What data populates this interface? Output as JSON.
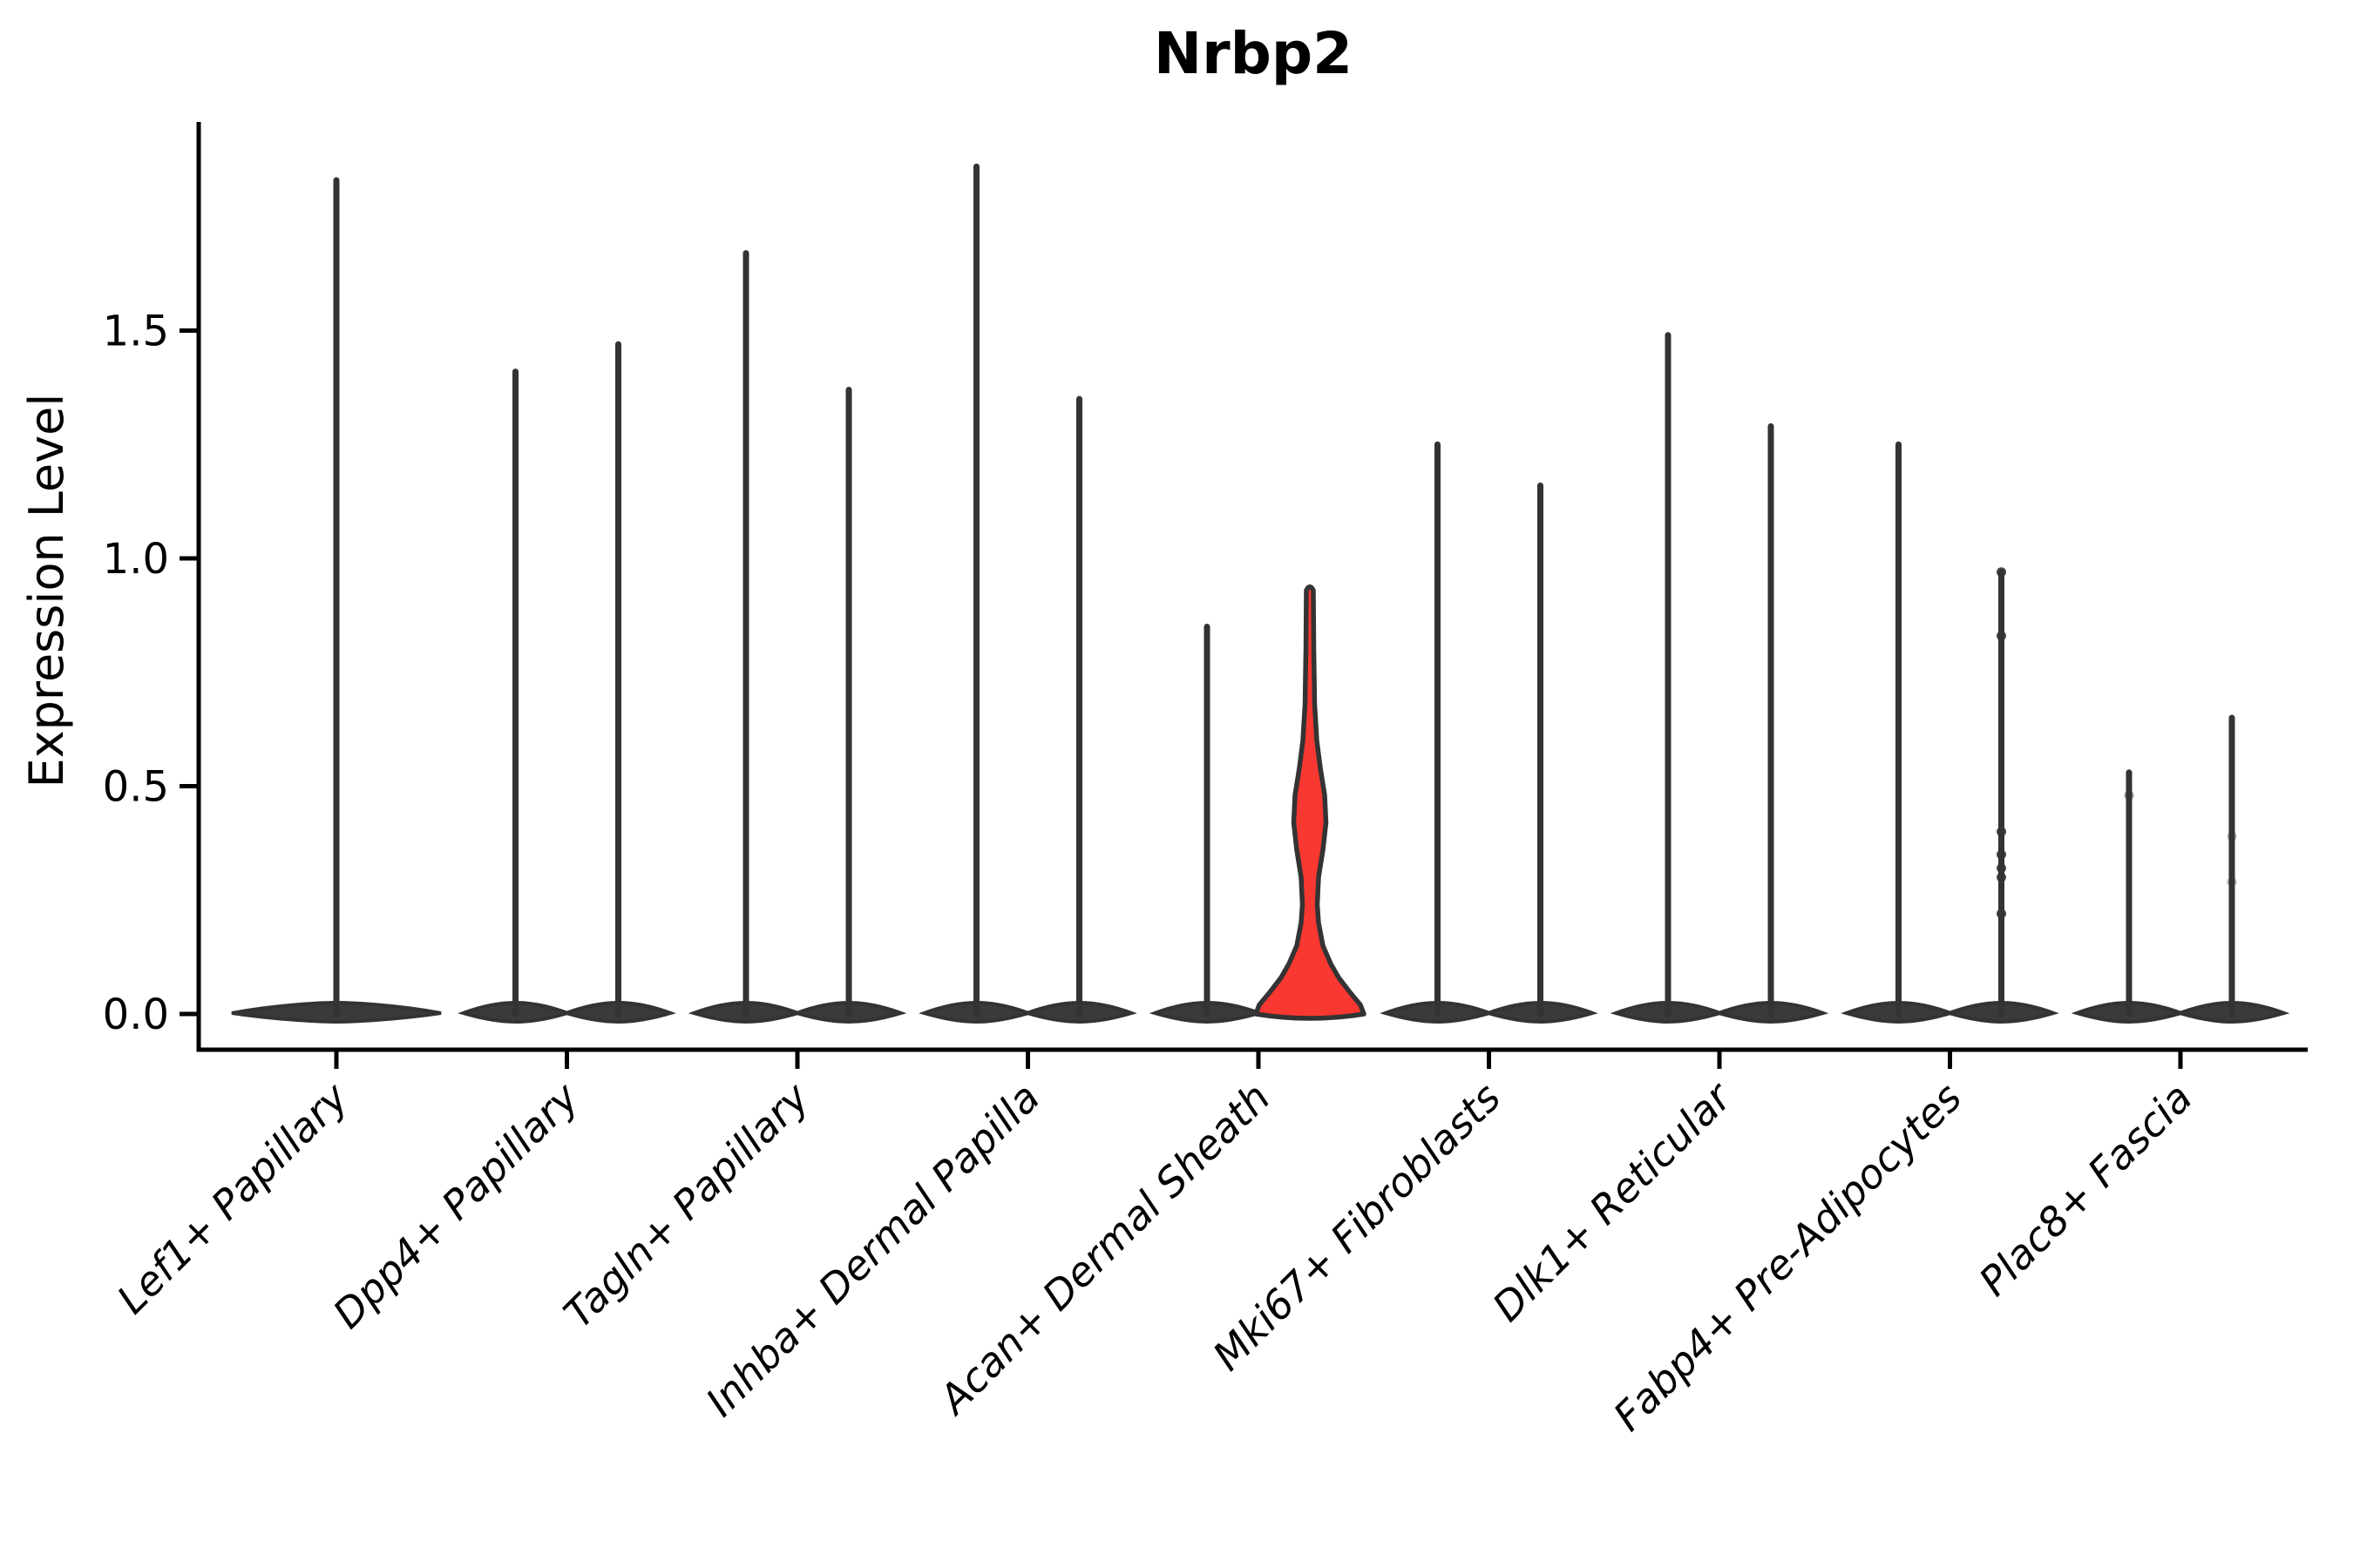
{
  "figure": {
    "title": "Nrbp2",
    "background": "#ffffff"
  },
  "chart_data": {
    "type": "violin",
    "title": "Nrbp2",
    "xlabel": "",
    "ylabel": "Expression Level",
    "yticks": [
      0.0,
      0.5,
      1.0,
      1.5
    ],
    "ytick_labels": [
      "0.0",
      "0.5",
      "1.0",
      "1.5"
    ],
    "ylim": [
      -0.07,
      1.96
    ],
    "grid": false,
    "legend": "none",
    "x_label_rotation_deg": 45,
    "x_label_style": "italic",
    "categories": [
      "Lef1+ Papillary",
      "Dpp4+ Papillary",
      "Tagln+ Papillary",
      "Inhba+ Dermal Papilla",
      "Acan+ Dermal Sheath",
      "Mki67+ Fibroblasts",
      "Dlk1+ Reticular",
      "Fabp4+ Pre-Adipocytes",
      "Plac8+ Fascia"
    ],
    "highlighted_category": "Acan+ Dermal Sheath",
    "violins": [
      {
        "category": "Lef1+ Papillary",
        "cat": 0,
        "slot": 0,
        "max": 1.83,
        "style": "spike",
        "base_halfwidth": 120
      },
      {
        "category": "Dpp4+ Papillary",
        "cat": 1,
        "slot": -1,
        "max": 1.41,
        "style": "spike"
      },
      {
        "category": "Dpp4+ Papillary",
        "cat": 1,
        "slot": 1,
        "max": 1.47,
        "style": "spike"
      },
      {
        "category": "Tagln+ Papillary",
        "cat": 2,
        "slot": -1,
        "max": 1.67,
        "style": "spike"
      },
      {
        "category": "Tagln+ Papillary",
        "cat": 2,
        "slot": 1,
        "max": 1.37,
        "style": "spike"
      },
      {
        "category": "Inhba+ Dermal Papilla",
        "cat": 3,
        "slot": -1,
        "max": 1.86,
        "style": "spike"
      },
      {
        "category": "Inhba+ Dermal Papilla",
        "cat": 3,
        "slot": 1,
        "max": 1.35,
        "style": "spike"
      },
      {
        "category": "Acan+ Dermal Sheath",
        "cat": 4,
        "slot": -1,
        "max": 0.85,
        "style": "spike"
      },
      {
        "category": "Acan+ Dermal Sheath",
        "cat": 4,
        "slot": 1,
        "max": 0.93,
        "style": "violin",
        "fill": "#f93831",
        "profile": [
          [
            0,
            62
          ],
          [
            0.02,
            58
          ],
          [
            0.05,
            45
          ],
          [
            0.08,
            33
          ],
          [
            0.11,
            24
          ],
          [
            0.15,
            15
          ],
          [
            0.2,
            10
          ],
          [
            0.24,
            8.5
          ],
          [
            0.3,
            10
          ],
          [
            0.36,
            15
          ],
          [
            0.42,
            18.5
          ],
          [
            0.48,
            17
          ],
          [
            0.54,
            12
          ],
          [
            0.6,
            8
          ],
          [
            0.68,
            5.5
          ],
          [
            0.8,
            4.5
          ],
          [
            0.93,
            4
          ]
        ]
      },
      {
        "category": "Mki67+ Fibroblasts",
        "cat": 5,
        "slot": -1,
        "max": 1.25,
        "style": "spike"
      },
      {
        "category": "Mki67+ Fibroblasts",
        "cat": 5,
        "slot": 1,
        "max": 1.16,
        "style": "spike"
      },
      {
        "category": "Dlk1+ Reticular",
        "cat": 6,
        "slot": -1,
        "max": 1.49,
        "style": "spike"
      },
      {
        "category": "Dlk1+ Reticular",
        "cat": 6,
        "slot": 1,
        "max": 1.29,
        "style": "spike"
      },
      {
        "category": "Fabp4+ Pre-Adipocytes",
        "cat": 7,
        "slot": -1,
        "max": 1.25,
        "style": "spike"
      },
      {
        "category": "Fabp4+ Pre-Adipocytes",
        "cat": 7,
        "slot": 1,
        "max": 0.97,
        "style": "spike",
        "dots": [
          0.97,
          0.83,
          0.4,
          0.35,
          0.32,
          0.3,
          0.22
        ]
      },
      {
        "category": "Plac8+ Fascia",
        "cat": 8,
        "slot": -1,
        "max": 0.53,
        "style": "spike",
        "dots": [
          0.48
        ],
        "dot_opacity": 0.5
      },
      {
        "category": "Plac8+ Fascia",
        "cat": 8,
        "slot": 1,
        "max": 0.65,
        "style": "spike",
        "dots": [
          0.39,
          0.29
        ],
        "dot_opacity": 0.35
      }
    ],
    "colors": {
      "violin_outline": "#333333",
      "highlight_fill": "#f93831",
      "base_fill": "#3a3a3a",
      "axis": "#000000",
      "text": "#000000",
      "background": "#ffffff"
    }
  }
}
